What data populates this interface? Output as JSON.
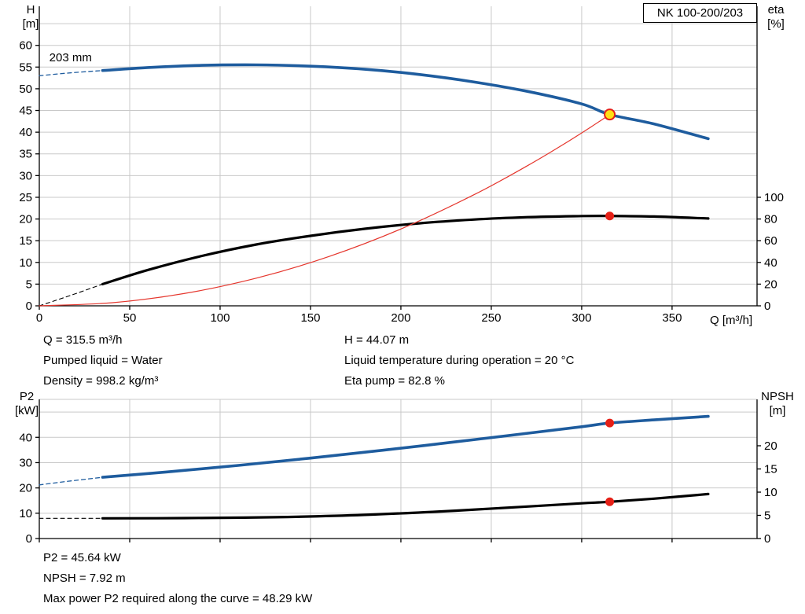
{
  "model_box": {
    "label": "NK 100-200/203"
  },
  "operating_info": {
    "left": [
      "Q = 315.5 m³/h",
      "Pumped liquid = Water",
      "Density = 998.2 kg/m³"
    ],
    "right": [
      "H = 44.07 m",
      "Liquid temperature during operation = 20 °C",
      "Eta pump = 82.8 %"
    ]
  },
  "power_info": [
    "P2 = 45.64 kW",
    "NPSH = 7.92 m",
    "Max power P2 required along the curve = 48.29 kW"
  ],
  "colors": {
    "grid": "#c9c9c9",
    "axis": "#000000",
    "blue": "#1e5c9e",
    "black": "#000000",
    "red": "#e5362d",
    "marker_red": "#e52017",
    "marker_yellow": "#ffe014"
  },
  "chart_data": [
    {
      "id": "performance",
      "type": "line",
      "title": "NK 100-200/203",
      "axis_labels": {
        "left_name": "H",
        "left_unit": "[m]",
        "right_name": "eta",
        "right_unit": "[%]",
        "x_label": "Q [m³/h]"
      },
      "x": {
        "min": 0,
        "max": 397,
        "ticks": [
          0,
          50,
          100,
          150,
          200,
          250,
          300,
          350
        ],
        "grid": [
          50,
          100,
          150,
          200,
          250,
          300,
          350
        ],
        "show_labels": true
      },
      "yl": {
        "min": 0,
        "max": 69,
        "ticks": [
          0,
          5,
          10,
          15,
          20,
          25,
          30,
          35,
          40,
          45,
          50,
          55,
          60
        ],
        "grid": [
          5,
          10,
          15,
          20,
          25,
          30,
          35,
          40,
          45,
          50,
          55,
          60,
          65
        ]
      },
      "yr": {
        "min": 0,
        "max": 276,
        "ticks": [
          0,
          20,
          40,
          60,
          80,
          100
        ]
      },
      "series": [
        {
          "name": "head-curve-dashed",
          "axis": "l",
          "color": "blue",
          "w": 1.3,
          "dash": "5 4",
          "x": [
            0,
            18,
            35
          ],
          "y": [
            53,
            53.7,
            54.2
          ]
        },
        {
          "name": "head-curve",
          "axis": "l",
          "color": "blue",
          "w": 3.6,
          "x": [
            35,
            60,
            90,
            120,
            150,
            180,
            210,
            240,
            270,
            300,
            315.5,
            340,
            370
          ],
          "y": [
            54.2,
            54.9,
            55.4,
            55.5,
            55.2,
            54.5,
            53.3,
            51.6,
            49.4,
            46.5,
            44.07,
            41.9,
            38.5
          ]
        },
        {
          "name": "eta-curve-dashed",
          "axis": "r",
          "color": "black",
          "w": 1.1,
          "dash": "5 4",
          "x": [
            0,
            18,
            35
          ],
          "y": [
            0,
            10,
            20
          ]
        },
        {
          "name": "eta-curve",
          "axis": "r",
          "color": "black",
          "w": 3.2,
          "x": [
            35,
            60,
            90,
            120,
            150,
            180,
            210,
            240,
            270,
            300,
            315.5,
            340,
            370
          ],
          "y": [
            20,
            33,
            46,
            56.5,
            64.5,
            71,
            76,
            79.5,
            81.7,
            82.7,
            82.8,
            82.3,
            80.5
          ]
        },
        {
          "name": "system-curve",
          "axis": "l",
          "color": "red",
          "w": 1.2,
          "x": [
            0,
            40,
            80,
            120,
            160,
            200,
            240,
            270,
            290,
            305,
            315.5
          ],
          "y": [
            0,
            0.71,
            2.83,
            6.37,
            11.33,
            17.7,
            25.5,
            32.27,
            37.22,
            41.16,
            44.07
          ]
        }
      ],
      "markers": [
        {
          "name": "duty-point-head",
          "axis": "l",
          "x": 315.5,
          "y": 44.07,
          "r": 6.5,
          "fill": "marker_yellow",
          "stroke": "marker_red",
          "sw": 2
        },
        {
          "name": "duty-point-eta",
          "axis": "r",
          "x": 315.5,
          "y": 82.8,
          "r": 5,
          "fill": "marker_red",
          "stroke": "marker_red",
          "sw": 1
        }
      ],
      "annotations": [
        {
          "name": "impeller-diameter-label",
          "text": "203 mm",
          "axis": "l",
          "x": 5.5,
          "y": 56.3
        }
      ]
    },
    {
      "id": "power-npsh",
      "type": "line",
      "axis_labels": {
        "left_name": "P2",
        "left_unit": "[kW]",
        "right_name": "NPSH",
        "right_unit": "[m]"
      },
      "x": {
        "min": 0,
        "max": 397,
        "ticks": [
          0,
          50,
          100,
          150,
          200,
          250,
          300,
          350
        ],
        "grid": [
          50,
          100,
          150,
          200,
          250,
          300,
          350
        ],
        "show_labels": false
      },
      "yl": {
        "min": 0,
        "max": 55,
        "ticks": [
          0,
          10,
          20,
          30,
          40
        ],
        "grid": [
          10,
          20,
          30,
          40,
          50
        ]
      },
      "yr": {
        "min": 0,
        "max": 30,
        "ticks": [
          0,
          5,
          10,
          15,
          20
        ]
      },
      "top_border": true,
      "series": [
        {
          "name": "p2-curve-dashed",
          "axis": "l",
          "color": "blue",
          "w": 1.3,
          "dash": "5 4",
          "x": [
            0,
            18,
            35
          ],
          "y": [
            21.2,
            22.8,
            24.2
          ]
        },
        {
          "name": "p2-curve",
          "axis": "l",
          "color": "blue",
          "w": 3.6,
          "x": [
            35,
            70,
            110,
            150,
            190,
            230,
            270,
            300,
            315.5,
            340,
            370
          ],
          "y": [
            24.2,
            26.3,
            28.9,
            31.8,
            34.9,
            38.2,
            41.6,
            44.2,
            45.64,
            46.9,
            48.29
          ]
        },
        {
          "name": "npsh-curve-dashed",
          "axis": "r",
          "color": "black",
          "w": 1.1,
          "dash": "5 4",
          "x": [
            0,
            18,
            35
          ],
          "y": [
            4.35,
            4.35,
            4.35
          ]
        },
        {
          "name": "npsh-curve",
          "axis": "r",
          "color": "black",
          "w": 3.2,
          "x": [
            35,
            80,
            130,
            180,
            230,
            270,
            300,
            315.5,
            340,
            370
          ],
          "y": [
            4.35,
            4.4,
            4.6,
            5.1,
            6.0,
            6.9,
            7.6,
            7.92,
            8.6,
            9.6
          ]
        }
      ],
      "markers": [
        {
          "name": "duty-point-p2",
          "axis": "l",
          "x": 315.5,
          "y": 45.64,
          "r": 5,
          "fill": "marker_red",
          "stroke": "marker_red",
          "sw": 1
        },
        {
          "name": "duty-point-npsh",
          "axis": "r",
          "x": 315.5,
          "y": 7.92,
          "r": 5,
          "fill": "marker_red",
          "stroke": "marker_red",
          "sw": 1
        }
      ]
    }
  ]
}
